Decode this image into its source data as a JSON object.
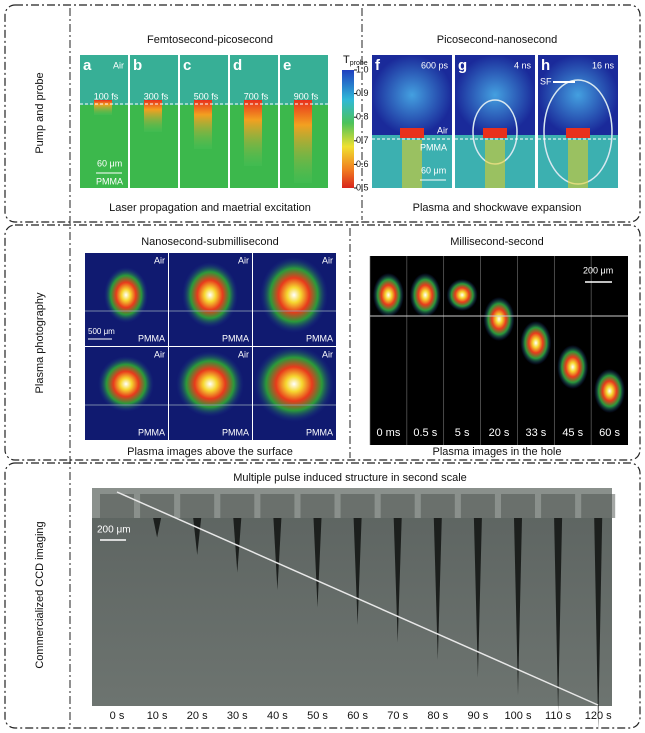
{
  "row_labels": [
    "Pump and probe",
    "Plasma photography",
    "Commercialized CCD imaging"
  ],
  "femto": {
    "title": "Femtosecond-picosecond",
    "caption": "Laser propagation and maetrial excitation",
    "panels": [
      {
        "letter": "a",
        "time": "100 fs"
      },
      {
        "letter": "b",
        "time": "300 fs"
      },
      {
        "letter": "c",
        "time": "500 fs"
      },
      {
        "letter": "d",
        "time": "700 fs"
      },
      {
        "letter": "e",
        "time": "900 fs"
      }
    ],
    "air": "Air",
    "pmma": "PMMA",
    "scale": "60 μm",
    "colorbar": {
      "label": "T",
      "sub": "probe",
      "ticks": [
        "1.0",
        "0.9",
        "0.8",
        "0.7",
        "0.6",
        "0.5"
      ]
    }
  },
  "pico": {
    "title": "Picosecond-nanosecond",
    "caption": "Plasma and shockwave expansion",
    "panels": [
      {
        "letter": "f",
        "time": "600 ps"
      },
      {
        "letter": "g",
        "time": "4 ns"
      },
      {
        "letter": "h",
        "time": "16 ns"
      }
    ],
    "air": "Air",
    "pmma": "PMMA",
    "scale": "60 μm",
    "sf": "SF"
  },
  "nano": {
    "title": "Nanosecond-submillisecond",
    "caption": "Plasma images above the surface",
    "air": "Air",
    "pmma": "PMMA",
    "scale": "500 μm"
  },
  "milli": {
    "title": "Millisecond-second",
    "caption": "Plasma images in the hole",
    "times": [
      "0 ms",
      "0.5 s",
      "5 s",
      "20 s",
      "33 s",
      "45 s",
      "60 s"
    ],
    "scale": "200 μm"
  },
  "ccd": {
    "title": "Multiple pulse induced structure in second scale",
    "scale": "200 μm",
    "times": [
      "0 s",
      "10 s",
      "20 s",
      "30 s",
      "40 s",
      "50 s",
      "60 s",
      "70 s",
      "80 s",
      "90 s",
      "100 s",
      "110 s",
      "120 s"
    ]
  }
}
